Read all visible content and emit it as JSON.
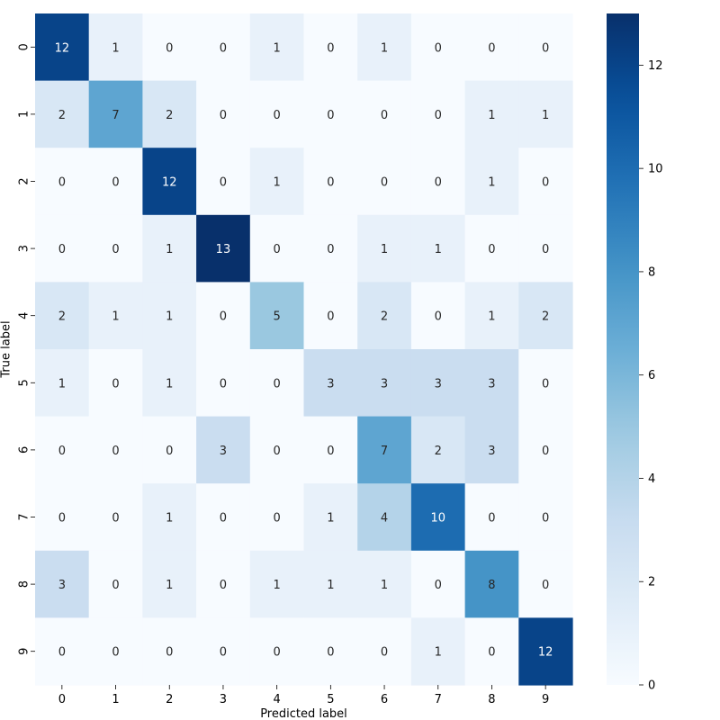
{
  "chart_data": {
    "type": "heatmap",
    "title": "",
    "xlabel": "Predicted label",
    "ylabel": "True label",
    "x_ticks": [
      "0",
      "1",
      "2",
      "3",
      "4",
      "5",
      "6",
      "7",
      "8",
      "9"
    ],
    "y_ticks": [
      "0",
      "1",
      "2",
      "3",
      "4",
      "5",
      "6",
      "7",
      "8",
      "9"
    ],
    "matrix": [
      [
        12,
        1,
        0,
        0,
        1,
        0,
        1,
        0,
        0,
        0
      ],
      [
        2,
        7,
        2,
        0,
        0,
        0,
        0,
        0,
        1,
        1
      ],
      [
        0,
        0,
        12,
        0,
        1,
        0,
        0,
        0,
        1,
        0
      ],
      [
        0,
        0,
        1,
        13,
        0,
        0,
        1,
        1,
        0,
        0
      ],
      [
        2,
        1,
        1,
        0,
        5,
        0,
        2,
        0,
        1,
        2
      ],
      [
        1,
        0,
        1,
        0,
        0,
        3,
        3,
        3,
        3,
        0
      ],
      [
        0,
        0,
        0,
        3,
        0,
        0,
        7,
        2,
        3,
        0
      ],
      [
        0,
        0,
        1,
        0,
        0,
        1,
        4,
        10,
        0,
        0
      ],
      [
        3,
        0,
        1,
        0,
        1,
        1,
        1,
        0,
        8,
        0
      ],
      [
        0,
        0,
        0,
        0,
        0,
        0,
        0,
        1,
        0,
        12
      ]
    ],
    "colormap": "Blues",
    "color_range": [
      0,
      13
    ],
    "colorbar_ticks": [
      0,
      2,
      4,
      6,
      8,
      10,
      12
    ],
    "colorbar_tick_labels": [
      "0",
      "2",
      "4",
      "6",
      "8",
      "10",
      "12"
    ]
  }
}
